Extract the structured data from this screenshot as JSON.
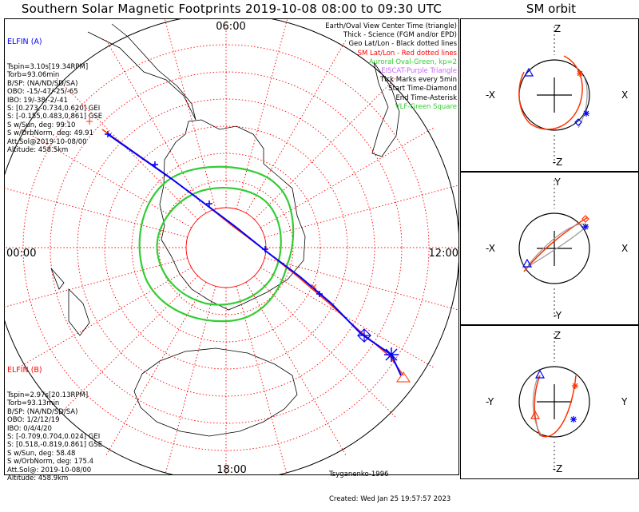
{
  "header": {
    "title": "Southern Solar Magnetic Footprints 2019-10-08 08:00 to 09:30 UTC",
    "sm_title": "SM orbit"
  },
  "colors": {
    "elfin_a": "#0000ff",
    "elfin_b": "#ff0000",
    "oval": "#33cc33",
    "grid": "#ff0000",
    "purple": "#cc66ff"
  },
  "map": {
    "time_labels": {
      "top": "06:00",
      "left": "00:00",
      "right": "12:00",
      "bottom": "18:00"
    }
  },
  "elfin_a": {
    "title": "ELFIN (A)",
    "lines": [
      "Tspin=3.10s[19.34RPM]",
      "Torb=93.06min",
      "B/SP: (NA/ND/SD/SA)",
      "OBO: -15/-47/-25/-65",
      "IBO: 19/-38/-2/-41",
      "S: [0.273,-0.734,0.620] GEI",
      "S: [-0.155,0.483,0.861] GSE",
      "S w/Sun, deg: 99.10",
      "S w/OrbNorm, deg: 49.91",
      "Att.Sol@2019-10-08/00",
      "Altitude: 458.5km"
    ]
  },
  "elfin_b": {
    "title": "ELFIN (B)",
    "lines": [
      "Tspin=2.97s[20.13RPM]",
      "Torb=93.13min",
      "B/SP: (NA/ND/SD/SA)",
      "OBO: 1/2/12/19",
      "IBO: 0/4/4/20",
      "S: [-0.709,0.704,0.024] GEI",
      "S: [0.518,-0.819,0.861] GSE",
      "S w/Sun, deg: 58.48",
      "S w/OrbNorm, deg: 175.4",
      "Att.Sol@: 2019-10-08/00",
      "Altitude: 458.9km"
    ]
  },
  "legend": [
    {
      "text": "Earth/Oval View Center Time (triangle)",
      "color": "#000000"
    },
    {
      "text": "Thick - Science (FGM and/or EPD)",
      "color": "#000000"
    },
    {
      "text": "Geo Lat/Lon - Black dotted lines",
      "color": "#000000"
    },
    {
      "text": "SM Lat/Lon - Red dotted lines",
      "color": "#ff0000"
    },
    {
      "text": "Auroral Oval-Green, kp=2",
      "color": "#33cc33"
    },
    {
      "text": "EISCAT-Purple Triangle",
      "color": "#cc66ff"
    },
    {
      "text": "Tick Marks every 5min",
      "color": "#000000"
    },
    {
      "text": "Start Time-Diamond",
      "color": "#000000"
    },
    {
      "text": "End Time-Asterisk",
      "color": "#000000"
    },
    {
      "text": "VLF-Green Square",
      "color": "#33cc33"
    }
  ],
  "credits": {
    "author": "Tsyganenko-1996",
    "created": "Created: Wed Jan 25 19:57:57 2023"
  },
  "sm_panels": [
    {
      "top": "Z",
      "bottom": "-Z",
      "left": "-X",
      "right": "X"
    },
    {
      "top": "Y",
      "bottom": "-Y",
      "left": "-X",
      "right": "X"
    },
    {
      "top": "Z",
      "bottom": "-Z",
      "left": "-Y",
      "right": "Y"
    }
  ]
}
